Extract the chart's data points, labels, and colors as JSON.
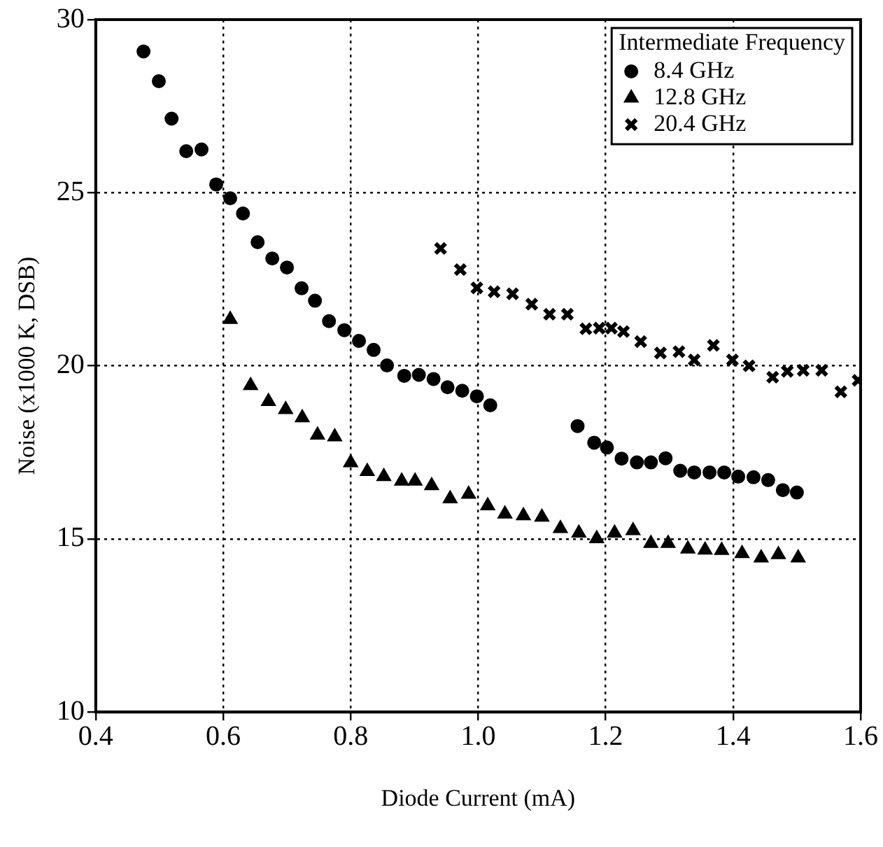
{
  "chart_data": {
    "type": "scatter",
    "xlabel": "Diode Current (mA)",
    "ylabel": "Noise (x1000 K, DSB)",
    "legend_title": "Intermediate Frequency",
    "legend": "top right",
    "grid": true,
    "xlim": [
      0.4,
      1.6
    ],
    "xticks": [
      0.4,
      0.6,
      0.8,
      {
        "value": 1,
        "label": "1.0"
      },
      1.2,
      1.4,
      1.6
    ],
    "ylim": [
      10,
      30
    ],
    "yticks": [
      10,
      15,
      20,
      25,
      30
    ],
    "series": [
      {
        "name": "8.4 GHz",
        "color": "#000000",
        "marker": "circle",
        "x": [
          0.475,
          0.499,
          0.519,
          0.542,
          0.566,
          0.589,
          0.611,
          0.631,
          0.654,
          0.677,
          0.7,
          0.723,
          0.744,
          0.766,
          0.79,
          0.813,
          0.836,
          0.857,
          0.884,
          0.907,
          0.93,
          0.952,
          0.975,
          0.998,
          1.019,
          1.156,
          1.182,
          1.202,
          1.225,
          1.249,
          1.271,
          1.294,
          1.317,
          1.339,
          1.363,
          1.386,
          1.408,
          1.432,
          1.455,
          1.478,
          1.5
        ],
        "values": [
          29.08,
          28.22,
          27.14,
          26.2,
          26.25,
          25.24,
          24.84,
          24.4,
          23.57,
          23.1,
          22.84,
          22.24,
          21.88,
          21.29,
          21.03,
          20.72,
          20.46,
          20.01,
          19.71,
          19.74,
          19.62,
          19.38,
          19.28,
          19.12,
          18.86,
          18.26,
          17.78,
          17.64,
          17.32,
          17.21,
          17.21,
          17.33,
          16.97,
          16.92,
          16.92,
          16.92,
          16.8,
          16.78,
          16.7,
          16.41,
          16.34
        ]
      },
      {
        "name": "12.8 GHz",
        "color": "#000000",
        "marker": "triangle",
        "x": [
          0.611,
          0.643,
          0.671,
          0.698,
          0.724,
          0.748,
          0.775,
          0.8,
          0.826,
          0.852,
          0.88,
          0.901,
          0.927,
          0.956,
          0.985,
          1.015,
          1.042,
          1.071,
          1.1,
          1.129,
          1.158,
          1.186,
          1.214,
          1.243,
          1.271,
          1.298,
          1.329,
          1.356,
          1.382,
          1.414,
          1.444,
          1.471,
          1.502
        ],
        "values": [
          21.34,
          19.43,
          18.97,
          18.74,
          18.5,
          18.0,
          17.95,
          17.2,
          16.95,
          16.8,
          16.67,
          16.67,
          16.54,
          16.16,
          16.29,
          15.96,
          15.72,
          15.67,
          15.63,
          15.3,
          15.17,
          15.01,
          15.17,
          15.24,
          14.87,
          14.87,
          14.71,
          14.68,
          14.67,
          14.58,
          14.45,
          14.55,
          14.45
        ]
      },
      {
        "name": "20.4 GHz",
        "color": "#000000",
        "marker": "cross",
        "x": [
          0.941,
          0.972,
          0.998,
          1.025,
          1.054,
          1.084,
          1.112,
          1.14,
          1.169,
          1.19,
          1.209,
          1.228,
          1.255,
          1.286,
          1.315,
          1.339,
          1.369,
          1.399,
          1.425,
          1.462,
          1.485,
          1.51,
          1.539,
          1.569,
          1.596
        ],
        "values": [
          23.39,
          22.78,
          22.25,
          22.14,
          22.08,
          21.78,
          21.49,
          21.49,
          21.07,
          21.09,
          21.09,
          20.99,
          20.7,
          20.37,
          20.41,
          20.17,
          20.59,
          20.17,
          20.0,
          19.67,
          19.84,
          19.87,
          19.87,
          19.25,
          19.58
        ]
      }
    ]
  }
}
